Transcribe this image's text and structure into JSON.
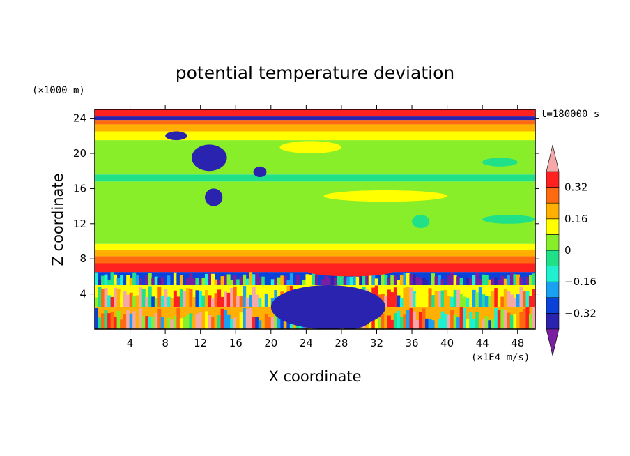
{
  "chart_data": {
    "type": "heatmap",
    "title": "potential temperature deviation",
    "xlabel": "X coordinate",
    "ylabel": "Z coordinate",
    "x_unit": "(×1E4 m/s)",
    "y_unit": "(×1000 m)",
    "time_label": "t=180000 s",
    "xlim": [
      0,
      50
    ],
    "ylim": [
      0,
      25
    ],
    "x_ticks": [
      4,
      8,
      12,
      16,
      20,
      24,
      28,
      32,
      36,
      40,
      44,
      48
    ],
    "y_ticks": [
      4,
      8,
      12,
      16,
      20,
      24
    ],
    "grid": false,
    "colorbar": {
      "levels": [
        -0.4,
        -0.32,
        -0.24,
        -0.16,
        -0.08,
        0,
        0.08,
        0.16,
        0.24,
        0.32,
        0.4
      ],
      "labels": [
        {
          "text": "0.32",
          "value": 0.32
        },
        {
          "text": "0.16",
          "value": 0.16
        },
        {
          "text": "0",
          "value": 0
        },
        {
          "text": "−0.16",
          "value": -0.16
        },
        {
          "text": "−0.32",
          "value": -0.32
        }
      ],
      "colors": [
        "#7a1fa2",
        "#2a23b0",
        "#0a41d8",
        "#1aa0f0",
        "#1ef0d0",
        "#20e088",
        "#88ee2a",
        "#ffff00",
        "#ffb000",
        "#ff6a10",
        "#ff2020",
        "#f4a8a8"
      ],
      "extend": "both",
      "placement": "right"
    },
    "bands": [
      {
        "z": [
          0,
          2.5
        ],
        "x": [
          0,
          50
        ],
        "pattern": "mixed-warm",
        "value": 0.2
      },
      {
        "z": [
          2.5,
          5
        ],
        "x": [
          0,
          50
        ],
        "pattern": "mixed-warm",
        "value": 0.1
      },
      {
        "z": [
          5,
          6.5
        ],
        "x": [
          0,
          50
        ],
        "pattern": "mixed",
        "value": -0.3
      },
      {
        "z": [
          6.5,
          7.5
        ],
        "x": [
          0,
          50
        ],
        "value": 0.36
      },
      {
        "z": [
          7.5,
          8.3
        ],
        "x": [
          0,
          50
        ],
        "value": 0.3
      },
      {
        "z": [
          8.3,
          9
        ],
        "x": [
          0,
          50
        ],
        "value": 0.22
      },
      {
        "z": [
          9,
          9.7
        ],
        "x": [
          0,
          50
        ],
        "value": 0.14
      },
      {
        "z": [
          9.7,
          16.8
        ],
        "x": [
          0,
          50
        ],
        "value": 0.04
      },
      {
        "z": [
          16.8,
          17.6
        ],
        "x": [
          0,
          50
        ],
        "value": -0.02
      },
      {
        "z": [
          17.6,
          21.5
        ],
        "x": [
          0,
          50
        ],
        "value": 0.04
      },
      {
        "z": [
          21.5,
          22.5
        ],
        "x": [
          0,
          50
        ],
        "value": 0.14
      },
      {
        "z": [
          22.5,
          23.3
        ],
        "x": [
          0,
          50
        ],
        "value": 0.22
      },
      {
        "z": [
          23.3,
          23.8
        ],
        "x": [
          0,
          50
        ],
        "value": 0.3
      },
      {
        "z": [
          23.8,
          24.2
        ],
        "x": [
          0,
          50
        ],
        "value": -0.36
      },
      {
        "z": [
          24.2,
          25
        ],
        "x": [
          0,
          50
        ],
        "value": 0.36
      }
    ],
    "patches": [
      {
        "x": [
          20,
          33
        ],
        "z": [
          0,
          5
        ],
        "value": -0.36
      },
      {
        "x": [
          26,
          32
        ],
        "z": [
          0,
          4.5
        ],
        "value": -0.34
      },
      {
        "x": [
          24,
          34
        ],
        "z": [
          6,
          7.3
        ],
        "value": 0.36
      },
      {
        "x": [
          26,
          40
        ],
        "z": [
          14.5,
          15.8
        ],
        "value": 0.14
      },
      {
        "x": [
          21,
          28
        ],
        "z": [
          20,
          21.4
        ],
        "value": 0.14
      },
      {
        "x": [
          11,
          15
        ],
        "z": [
          18,
          21
        ],
        "value": -0.34
      },
      {
        "x": [
          12.5,
          14.5
        ],
        "z": [
          14,
          16
        ],
        "value": -0.36
      },
      {
        "x": [
          18,
          19.5
        ],
        "z": [
          17.3,
          18.5
        ],
        "value": -0.36
      },
      {
        "x": [
          8,
          10.5
        ],
        "z": [
          21.5,
          22.5
        ],
        "value": -0.36
      },
      {
        "x": [
          36,
          38
        ],
        "z": [
          11.5,
          13
        ],
        "value": -0.04
      },
      {
        "x": [
          44,
          50
        ],
        "z": [
          12,
          13
        ],
        "value": -0.04
      },
      {
        "x": [
          44,
          48
        ],
        "z": [
          18.5,
          19.5
        ],
        "value": -0.02
      }
    ]
  }
}
